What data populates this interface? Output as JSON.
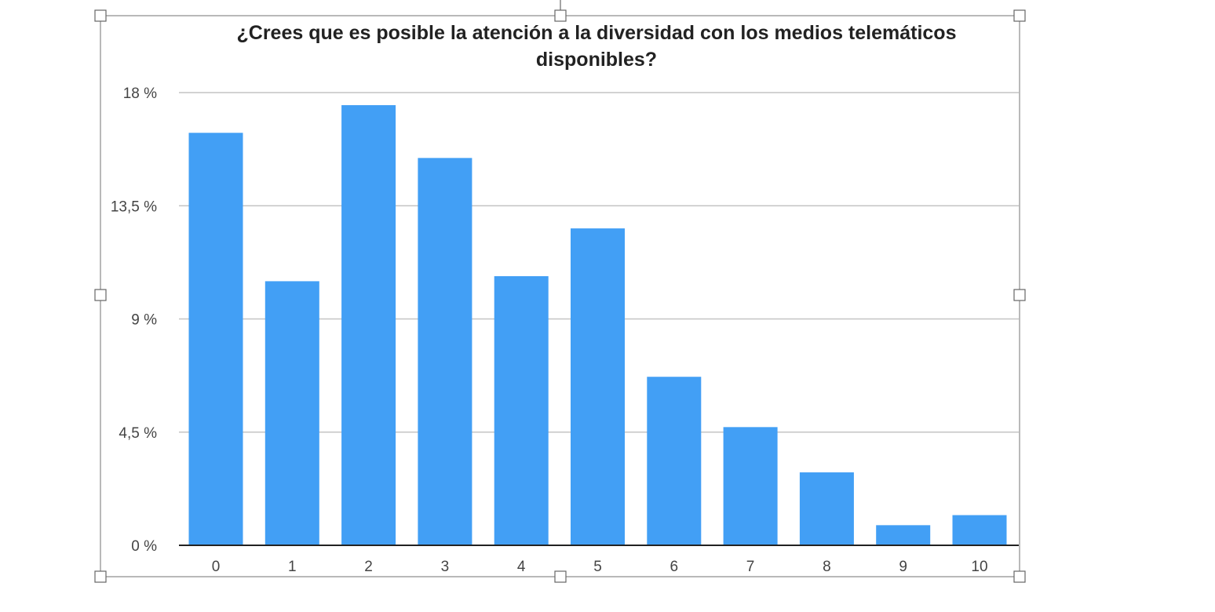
{
  "chart_data": {
    "type": "bar",
    "title_lines": [
      "¿Crees que es posible la atención a la diversidad con los medios telemáticos",
      "disponibles?"
    ],
    "categories": [
      "0",
      "1",
      "2",
      "3",
      "4",
      "5",
      "6",
      "7",
      "8",
      "9",
      "10"
    ],
    "values": [
      16.4,
      10.5,
      17.5,
      15.4,
      10.7,
      12.6,
      6.7,
      4.7,
      2.9,
      0.8,
      1.2
    ],
    "y_ticks": [
      {
        "value": 0,
        "label": "0 %"
      },
      {
        "value": 4.5,
        "label": "4,5 %"
      },
      {
        "value": 9,
        "label": "9 %"
      },
      {
        "value": 13.5,
        "label": "13,5 %"
      },
      {
        "value": 18,
        "label": "18 %"
      }
    ],
    "ylim": [
      0,
      18
    ],
    "grid": true,
    "legend": "none",
    "colors": {
      "bar": "#429ff5"
    }
  }
}
